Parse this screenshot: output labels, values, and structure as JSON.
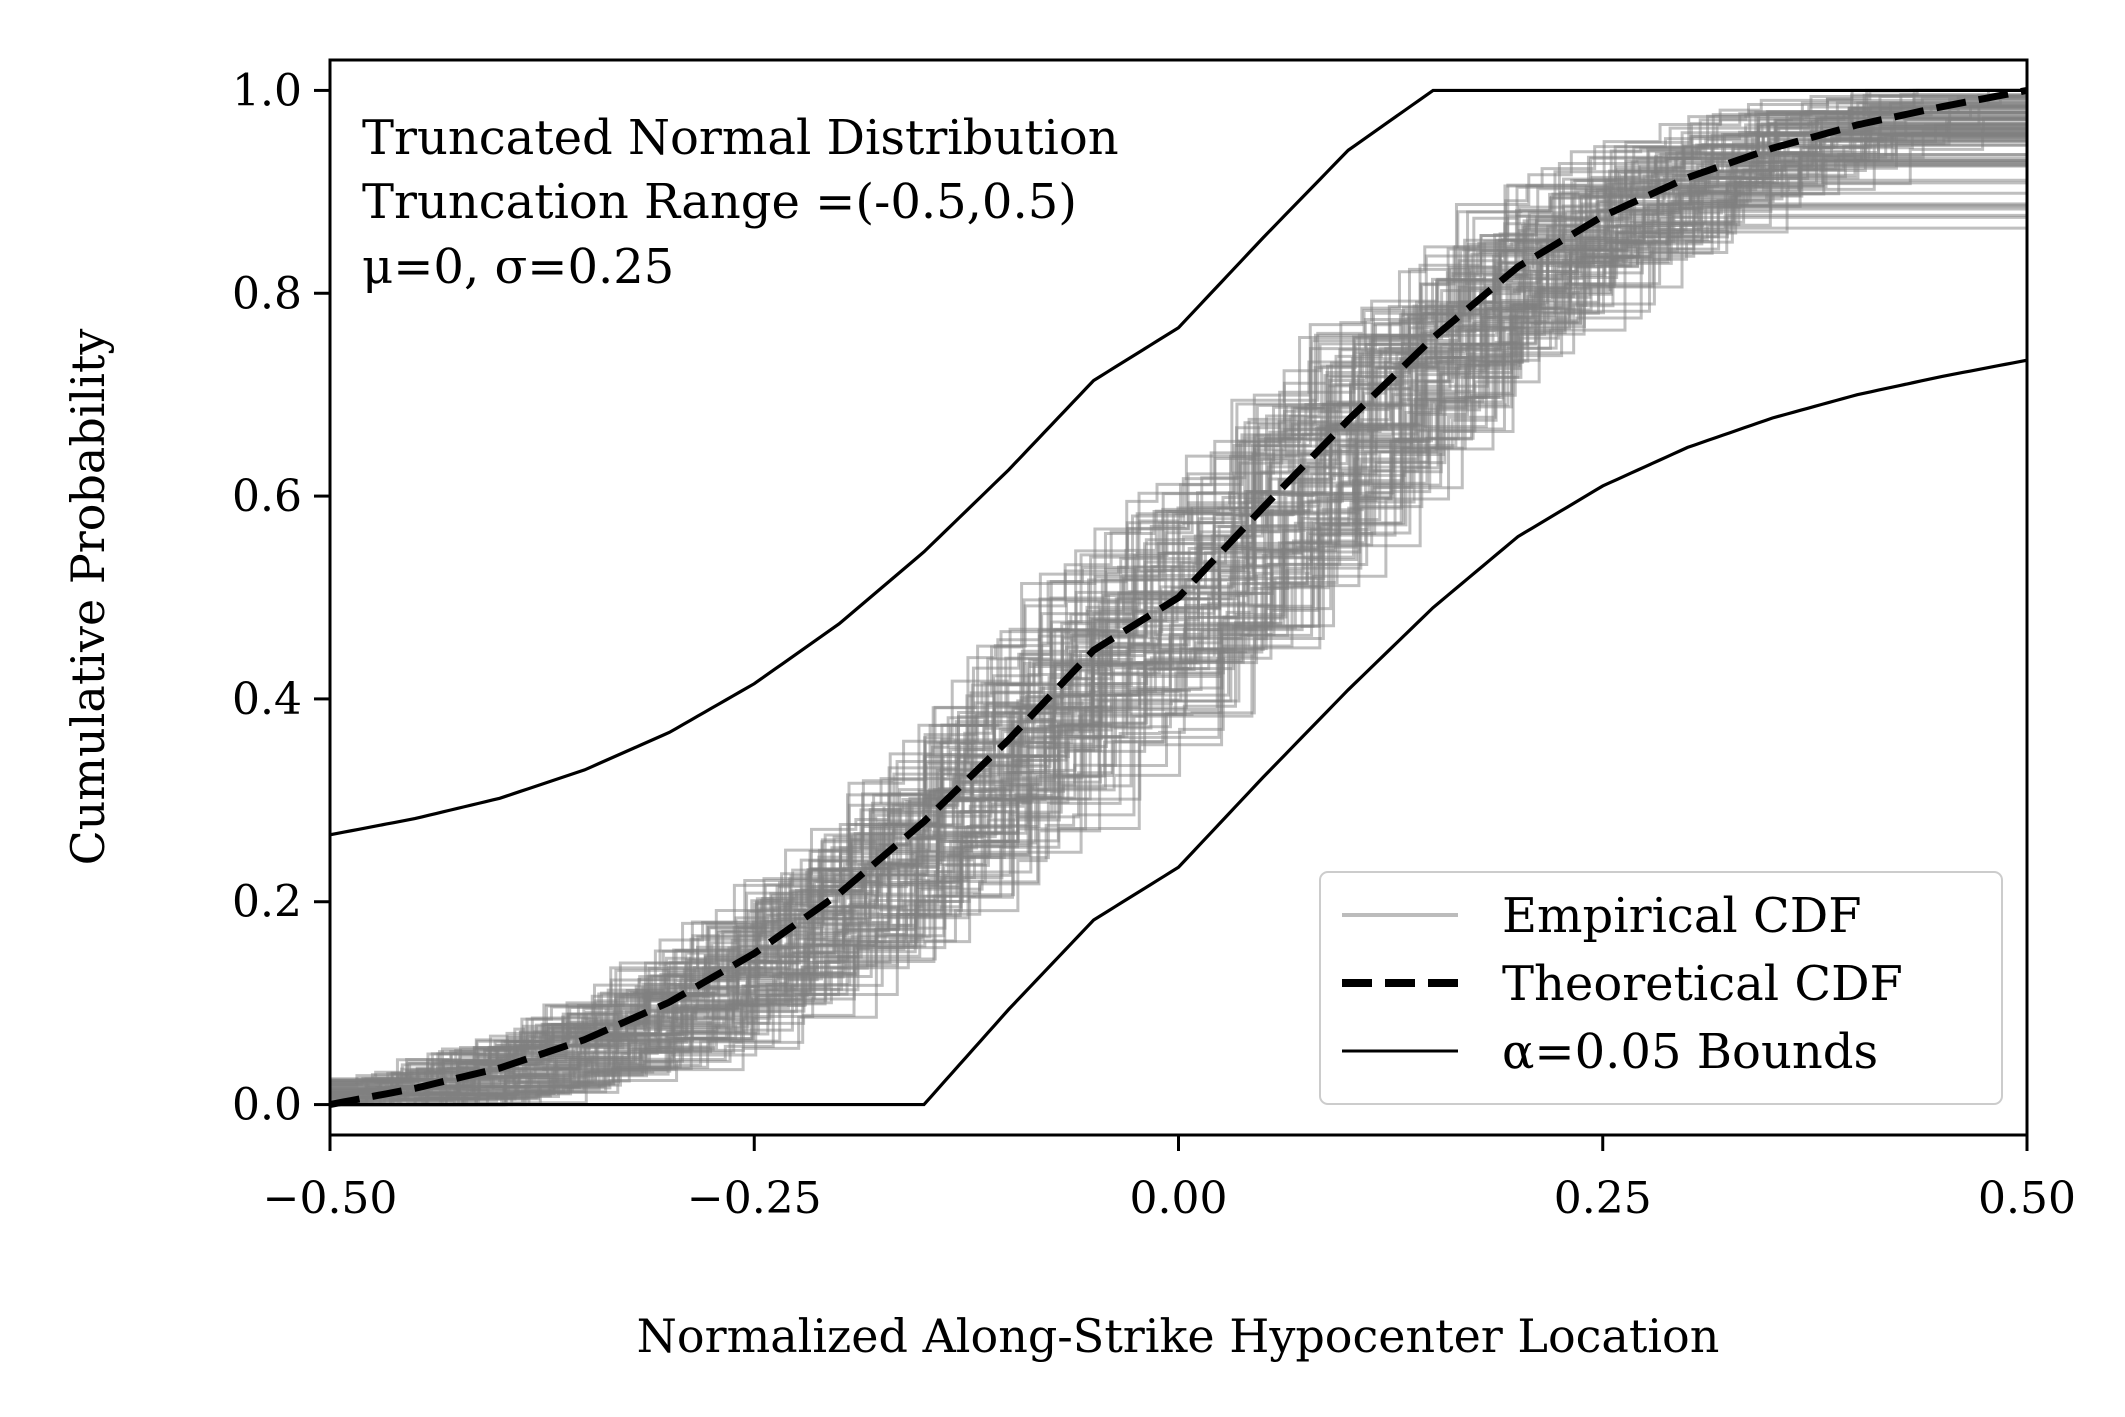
{
  "chart_data": {
    "type": "line",
    "xlabel": "Normalized Along-Strike Hypocenter Location",
    "ylabel": "Cumulative Probability",
    "xlim": [
      -0.5,
      0.5
    ],
    "ylim": [
      -0.03,
      1.03
    ],
    "x_ticks": [
      -0.5,
      -0.25,
      0.0,
      0.25,
      0.5
    ],
    "x_tick_labels": [
      "−0.50",
      "−0.25",
      "0.00",
      "0.25",
      "0.50"
    ],
    "y_ticks": [
      0.0,
      0.2,
      0.4,
      0.6,
      0.8,
      1.0
    ],
    "y_tick_labels": [
      "0.0",
      "0.2",
      "0.4",
      "0.6",
      "0.8",
      "1.0"
    ],
    "annotation": [
      "Truncated Normal Distribution",
      "Truncation Range =(-0.5,0.5)",
      "μ=0, σ=0.25"
    ],
    "grid": false,
    "legend_position": "lower-right",
    "legend": [
      "Empirical CDF",
      "Theoretical CDF",
      "α=0.05 Bounds"
    ],
    "distribution": {
      "name": "truncated normal",
      "mu": 0,
      "sigma": 0.25,
      "lower": -0.5,
      "upper": 0.5
    },
    "series": [
      {
        "name": "Theoretical CDF",
        "style": "dashed",
        "color": "#000000",
        "x": [
          -0.5,
          -0.45,
          -0.4,
          -0.35,
          -0.3,
          -0.25,
          -0.2,
          -0.15,
          -0.1,
          -0.05,
          0.0,
          0.05,
          0.1,
          0.15,
          0.2,
          0.25,
          0.3,
          0.35,
          0.4,
          0.45,
          0.5
        ],
        "y": [
          0.0,
          0.016,
          0.036,
          0.064,
          0.101,
          0.149,
          0.208,
          0.279,
          0.36,
          0.448,
          0.5,
          0.589,
          0.675,
          0.756,
          0.826,
          0.876,
          0.914,
          0.943,
          0.966,
          0.984,
          1.0
        ]
      },
      {
        "name": "α=0.05 Bounds",
        "style": "solid",
        "color": "#000000",
        "part": "upper",
        "x": [
          -0.5,
          -0.45,
          -0.4,
          -0.35,
          -0.3,
          -0.25,
          -0.2,
          -0.15,
          -0.1,
          -0.05,
          0.0,
          0.05,
          0.1,
          0.15,
          0.5
        ],
        "y": [
          0.266,
          0.282,
          0.302,
          0.33,
          0.367,
          0.415,
          0.474,
          0.545,
          0.626,
          0.714,
          0.766,
          0.855,
          0.941,
          1.0,
          1.0
        ]
      },
      {
        "name": "α=0.05 Bounds",
        "style": "solid",
        "color": "#000000",
        "part": "lower",
        "x": [
          -0.5,
          -0.15,
          -0.1,
          -0.05,
          0.0,
          0.05,
          0.1,
          0.15,
          0.2,
          0.25,
          0.3,
          0.35,
          0.4,
          0.45,
          0.5
        ],
        "y": [
          0.0,
          0.0,
          0.094,
          0.182,
          0.234,
          0.323,
          0.409,
          0.49,
          0.56,
          0.61,
          0.648,
          0.677,
          0.7,
          0.718,
          0.734
        ]
      },
      {
        "name": "Empirical CDF",
        "style": "step",
        "color": "#808080",
        "count": 100,
        "spread": 0.09
      }
    ]
  }
}
